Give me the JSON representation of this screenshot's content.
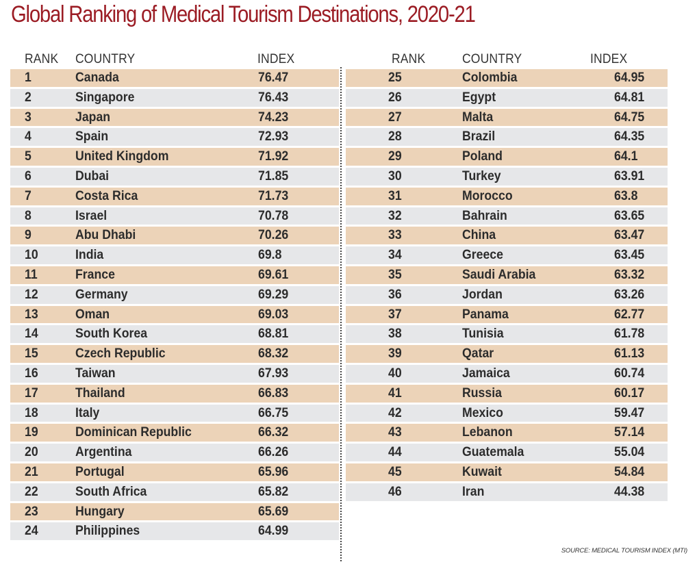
{
  "title": "Global Ranking of Medical Tourism Destinations, 2020-21",
  "source": "SOURCE: MEDICAL TOURISM INDEX (MTI)",
  "headers": {
    "rank": "RANK",
    "country": "COUNTRY",
    "index": "INDEX"
  },
  "colors": {
    "title": "#9b1c24",
    "row_odd": "#ecd3b8",
    "row_even": "#e6e7e9"
  },
  "chart_data": {
    "type": "table",
    "title": "Global Ranking of Medical Tourism Destinations, 2020-21",
    "columns": [
      "RANK",
      "COUNTRY",
      "INDEX"
    ],
    "rows": [
      [
        1,
        "Canada",
        "76.47"
      ],
      [
        2,
        "Singapore",
        "76.43"
      ],
      [
        3,
        "Japan",
        "74.23"
      ],
      [
        4,
        "Spain",
        "72.93"
      ],
      [
        5,
        "United Kingdom",
        "71.92"
      ],
      [
        6,
        "Dubai",
        "71.85"
      ],
      [
        7,
        "Costa Rica",
        "71.73"
      ],
      [
        8,
        "Israel",
        "70.78"
      ],
      [
        9,
        "Abu Dhabi",
        "70.26"
      ],
      [
        10,
        "India",
        "69.8"
      ],
      [
        11,
        "France",
        "69.61"
      ],
      [
        12,
        "Germany",
        "69.29"
      ],
      [
        13,
        "Oman",
        "69.03"
      ],
      [
        14,
        "South Korea",
        "68.81"
      ],
      [
        15,
        "Czech Republic",
        "68.32"
      ],
      [
        16,
        "Taiwan",
        "67.93"
      ],
      [
        17,
        "Thailand",
        "66.83"
      ],
      [
        18,
        "Italy",
        "66.75"
      ],
      [
        19,
        "Dominican Republic",
        "66.32"
      ],
      [
        20,
        "Argentina",
        "66.26"
      ],
      [
        21,
        "Portugal",
        "65.96"
      ],
      [
        22,
        "South Africa",
        "65.82"
      ],
      [
        23,
        "Hungary",
        "65.69"
      ],
      [
        24,
        "Philippines",
        "64.99"
      ],
      [
        25,
        "Colombia",
        "64.95"
      ],
      [
        26,
        "Egypt",
        "64.81"
      ],
      [
        27,
        "Malta",
        "64.75"
      ],
      [
        28,
        "Brazil",
        "64.35"
      ],
      [
        29,
        "Poland",
        "64.1"
      ],
      [
        30,
        "Turkey",
        "63.91"
      ],
      [
        31,
        "Morocco",
        "63.8"
      ],
      [
        32,
        "Bahrain",
        "63.65"
      ],
      [
        33,
        "China",
        "63.47"
      ],
      [
        34,
        "Greece",
        "63.45"
      ],
      [
        35,
        "Saudi Arabia",
        "63.32"
      ],
      [
        36,
        "Jordan",
        "63.26"
      ],
      [
        37,
        "Panama",
        "62.77"
      ],
      [
        38,
        "Tunisia",
        "61.78"
      ],
      [
        39,
        "Qatar",
        "61.13"
      ],
      [
        40,
        "Jamaica",
        "60.74"
      ],
      [
        41,
        "Russia",
        "60.17"
      ],
      [
        42,
        "Mexico",
        "59.47"
      ],
      [
        43,
        "Lebanon",
        "57.14"
      ],
      [
        44,
        "Guatemala",
        "55.04"
      ],
      [
        45,
        "Kuwait",
        "54.84"
      ],
      [
        46,
        "Iran",
        "44.38"
      ]
    ],
    "source": "SOURCE: MEDICAL TOURISM INDEX (MTI)"
  }
}
